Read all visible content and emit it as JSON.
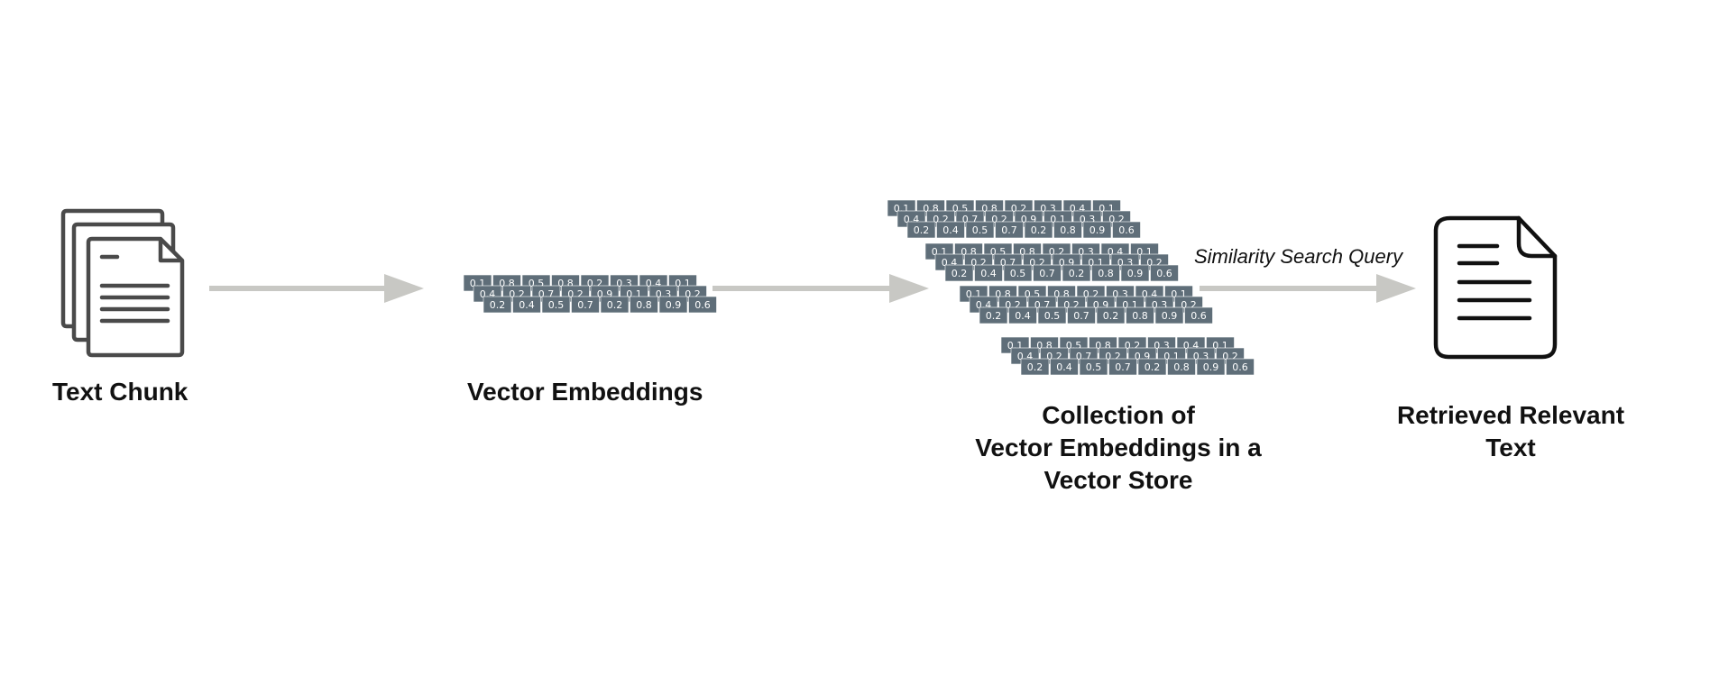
{
  "nodes": {
    "text_chunk": {
      "label": "Text Chunk"
    },
    "vector_embeddings": {
      "label": "Vector Embeddings"
    },
    "vector_store": {
      "lines": [
        "Collection of",
        "Vector Embeddings in a",
        "Vector Store"
      ]
    },
    "retrieved_text": {
      "lines": [
        "Retrieved Relevant",
        "Text"
      ]
    }
  },
  "edges": {
    "similarity_search": {
      "label": "Similarity Search Query"
    }
  },
  "embedding_rows": [
    [
      "0.1",
      "0.8",
      "0.5",
      "0.8",
      "0.2",
      "0.3",
      "0.4",
      "0.1"
    ],
    [
      "0.4",
      "0.2",
      "0.7",
      "0.2",
      "0.9",
      "0.1",
      "0.3",
      "0.2"
    ],
    [
      "0.2",
      "0.4",
      "0.5",
      "0.7",
      "0.2",
      "0.8",
      "0.9",
      "0.6"
    ]
  ],
  "colors": {
    "arrow": "#c8c8c4",
    "cell": "#5f6e79",
    "icon_stroke": "#4a4a4a",
    "doc_stroke": "#111111"
  }
}
